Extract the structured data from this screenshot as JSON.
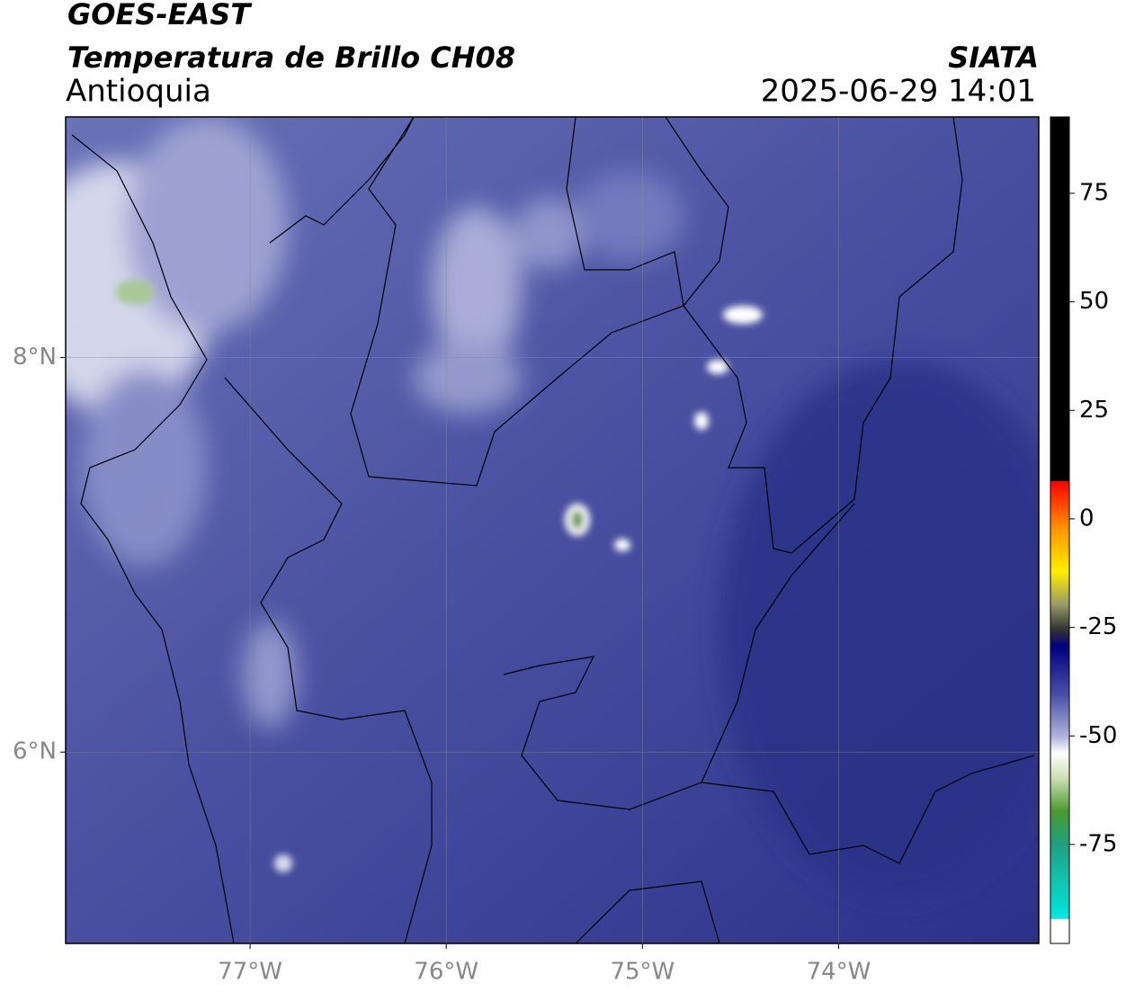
{
  "header": {
    "title": "GOES-EAST",
    "subtitle": "Temperatura de Brillo CH08",
    "region": "Antioquia",
    "source": "SIATA",
    "datetime": "2025-06-29 14:01"
  },
  "map": {
    "xlim": [
      -77.94,
      -72.98
    ],
    "ylim": [
      5.03,
      9.22
    ],
    "xticks": [
      {
        "value": -77,
        "label": "77°W"
      },
      {
        "value": -76,
        "label": "76°W"
      },
      {
        "value": -75,
        "label": "75°W"
      },
      {
        "value": -74,
        "label": "74°W"
      }
    ],
    "yticks": [
      {
        "value": 8,
        "label": "8°N"
      },
      {
        "value": 6,
        "label": "6°N"
      }
    ]
  },
  "colorbar": {
    "lim": [
      -97.8,
      92.6
    ],
    "ticks": [
      75,
      50,
      25,
      0,
      -25,
      -50,
      -75
    ]
  }
}
